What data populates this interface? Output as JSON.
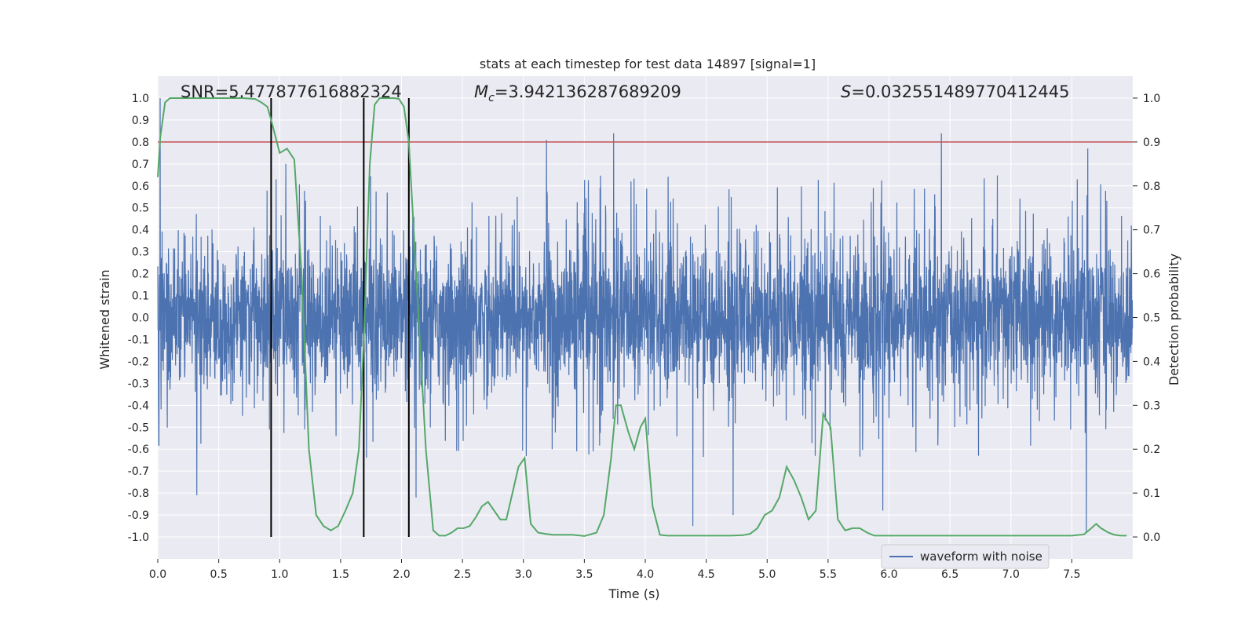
{
  "chart_data": {
    "type": "line",
    "title": "stats at each timestep for test data 14897 [signal=1]",
    "xlabel": "Time (s)",
    "ylabel_left": "Whitened strain",
    "ylabel_right": "Detection probability",
    "xlim": [
      0.0,
      8.0
    ],
    "ylim_left": [
      -1.1,
      1.1
    ],
    "ylim_right": [
      -0.05,
      1.05
    ],
    "xticks": [
      "0.0",
      "0.5",
      "1.0",
      "1.5",
      "2.0",
      "2.5",
      "3.0",
      "3.5",
      "4.0",
      "4.5",
      "5.0",
      "5.5",
      "6.0",
      "6.5",
      "7.0",
      "7.5"
    ],
    "yticks_left": [
      "1.0",
      "0.9",
      "0.8",
      "0.7",
      "0.6",
      "0.5",
      "0.4",
      "0.3",
      "0.2",
      "0.1",
      "0.0",
      "-0.1",
      "-0.2",
      "-0.3",
      "-0.4",
      "-0.5",
      "-0.6",
      "-0.7",
      "-0.8",
      "-0.9",
      "-1.0"
    ],
    "yticks_right": [
      "1.0",
      "0.9",
      "0.8",
      "0.7",
      "0.6",
      "0.5",
      "0.4",
      "0.3",
      "0.2",
      "0.1",
      "0.0"
    ],
    "grid": true,
    "legend_position": "lower-center-right",
    "annotations": {
      "snr": "SNR=5.477877616882324",
      "mc_symbol": "M",
      "mc_sub": "c",
      "mc_value": "=3.942136287689209",
      "s_symbol": "S",
      "s_value": "=0.032551489770412445"
    },
    "threshold": {
      "axis": "right",
      "value": 0.9,
      "color": "#c44e52"
    },
    "vertical_lines": [
      0.93,
      1.69,
      2.06
    ],
    "series": [
      {
        "name": "waveform with noise",
        "axis": "left",
        "color": "#4c72b0",
        "kind": "noise",
        "core_amplitude": 0.2,
        "spikes": [
          {
            "x": 0.32,
            "y": -0.81
          },
          {
            "x": 3.19,
            "y": 0.81
          },
          {
            "x": 3.74,
            "y": 0.84
          },
          {
            "x": 4.39,
            "y": -0.95
          },
          {
            "x": 6.43,
            "y": 0.84
          },
          {
            "x": 7.62,
            "y": -0.98
          },
          {
            "x": 0.02,
            "y": 1.0
          },
          {
            "x": 7.63,
            "y": 0.77
          },
          {
            "x": 1.05,
            "y": 0.7
          },
          {
            "x": 2.12,
            "y": -0.82
          },
          {
            "x": 4.72,
            "y": -0.9
          },
          {
            "x": 5.95,
            "y": -0.88
          }
        ]
      },
      {
        "name": "detection probability",
        "axis": "right",
        "color": "#55a868",
        "x": [
          0.0,
          0.02,
          0.06,
          0.1,
          0.15,
          0.2,
          0.3,
          0.4,
          0.5,
          0.6,
          0.7,
          0.8,
          0.85,
          0.9,
          0.93,
          1.0,
          1.06,
          1.12,
          1.18,
          1.24,
          1.3,
          1.36,
          1.42,
          1.48,
          1.54,
          1.6,
          1.65,
          1.69,
          1.74,
          1.78,
          1.82,
          1.86,
          1.9,
          1.94,
          1.98,
          2.02,
          2.06,
          2.12,
          2.2,
          2.26,
          2.31,
          2.36,
          2.41,
          2.46,
          2.51,
          2.56,
          2.61,
          2.66,
          2.71,
          2.76,
          2.81,
          2.86,
          2.91,
          2.96,
          3.01,
          3.06,
          3.12,
          3.18,
          3.24,
          3.3,
          3.4,
          3.5,
          3.6,
          3.66,
          3.72,
          3.76,
          3.8,
          3.86,
          3.91,
          3.96,
          4.0,
          4.06,
          4.12,
          4.18,
          4.24,
          4.3,
          4.4,
          4.5,
          4.6,
          4.7,
          4.8,
          4.86,
          4.92,
          4.98,
          5.04,
          5.1,
          5.16,
          5.22,
          5.28,
          5.34,
          5.4,
          5.46,
          5.52,
          5.58,
          5.64,
          5.7,
          5.76,
          5.82,
          5.88,
          5.94,
          6.0,
          6.2,
          6.4,
          6.6,
          6.8,
          7.0,
          7.2,
          7.4,
          7.5,
          7.6,
          7.66,
          7.7,
          7.74,
          7.8,
          7.85,
          7.9,
          7.95
        ],
        "y": [
          0.82,
          0.91,
          0.99,
          1.0,
          1.0,
          1.0,
          1.0,
          1.0,
          1.0,
          1.0,
          1.0,
          0.998,
          0.99,
          0.98,
          0.95,
          0.875,
          0.885,
          0.86,
          0.6,
          0.2,
          0.05,
          0.025,
          0.015,
          0.025,
          0.06,
          0.1,
          0.2,
          0.45,
          0.85,
          0.985,
          1.0,
          1.0,
          1.0,
          1.0,
          0.998,
          0.98,
          0.9,
          0.6,
          0.2,
          0.015,
          0.003,
          0.003,
          0.01,
          0.02,
          0.02,
          0.025,
          0.045,
          0.07,
          0.08,
          0.06,
          0.04,
          0.04,
          0.1,
          0.16,
          0.18,
          0.03,
          0.01,
          0.007,
          0.005,
          0.005,
          0.005,
          0.002,
          0.01,
          0.05,
          0.18,
          0.3,
          0.3,
          0.24,
          0.2,
          0.25,
          0.27,
          0.07,
          0.005,
          0.003,
          0.003,
          0.003,
          0.003,
          0.003,
          0.003,
          0.003,
          0.004,
          0.007,
          0.02,
          0.05,
          0.06,
          0.09,
          0.16,
          0.13,
          0.09,
          0.04,
          0.06,
          0.28,
          0.25,
          0.04,
          0.015,
          0.02,
          0.02,
          0.01,
          0.003,
          0.003,
          0.003,
          0.003,
          0.003,
          0.003,
          0.003,
          0.003,
          0.003,
          0.003,
          0.003,
          0.006,
          0.02,
          0.03,
          0.02,
          0.01,
          0.005,
          0.003,
          0.003
        ]
      }
    ]
  }
}
